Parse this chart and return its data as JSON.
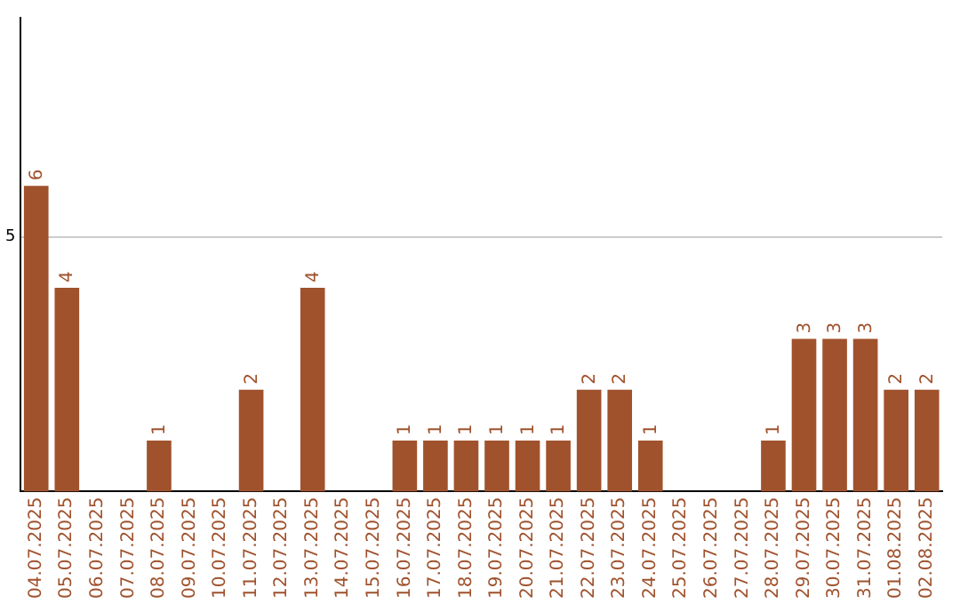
{
  "chart_data": {
    "type": "bar",
    "categories": [
      "04.07.2025",
      "05.07.2025",
      "06.07.2025",
      "07.07.2025",
      "08.07.2025",
      "09.07.2025",
      "10.07.2025",
      "11.07.2025",
      "12.07.2025",
      "13.07.2025",
      "14.07.2025",
      "15.07.2025",
      "16.07.2025",
      "17.07.2025",
      "18.07.2025",
      "19.07.2025",
      "20.07.2025",
      "21.07.2025",
      "22.07.2025",
      "23.07.2025",
      "24.07.2025",
      "25.07.2025",
      "26.07.2025",
      "27.07.2025",
      "28.07.2025",
      "29.07.2025",
      "30.07.2025",
      "31.07.2025",
      "01.08.2025",
      "02.08.2025"
    ],
    "values": [
      6,
      4,
      0,
      0,
      1,
      0,
      0,
      2,
      0,
      4,
      0,
      0,
      1,
      1,
      1,
      1,
      1,
      1,
      2,
      2,
      1,
      0,
      0,
      0,
      1,
      3,
      3,
      3,
      2,
      2
    ],
    "value_labels": [
      "6",
      "4",
      null,
      null,
      "1",
      null,
      null,
      "2",
      null,
      "4",
      null,
      null,
      "1",
      "1",
      "1",
      "1",
      "1",
      "1",
      "2",
      "2",
      "1",
      null,
      null,
      null,
      "1",
      "3",
      "3",
      "3",
      "2",
      "2"
    ],
    "color": "#a0522d",
    "ylim": [
      0,
      9.3
    ],
    "yticks": [
      5
    ],
    "grid": "y",
    "legend": false
  }
}
